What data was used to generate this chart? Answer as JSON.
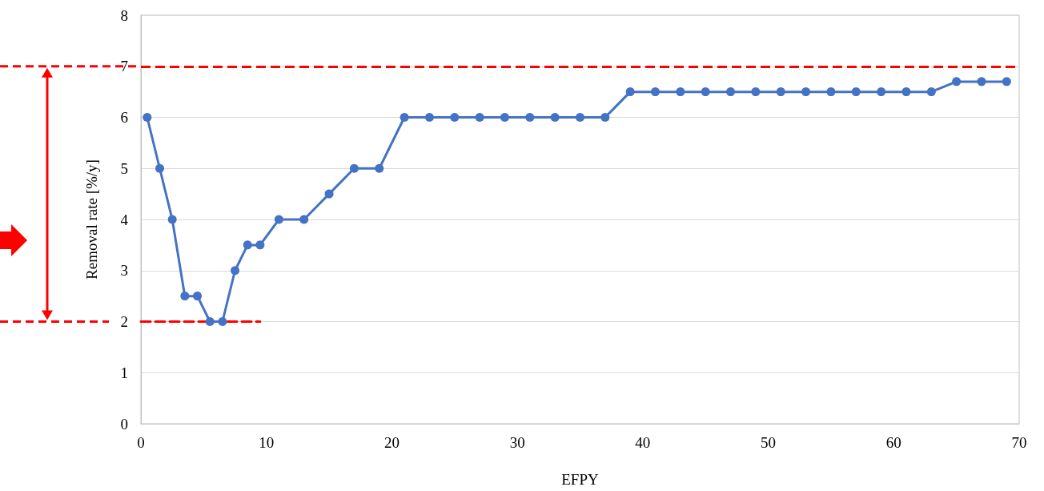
{
  "chart_data": {
    "type": "line",
    "xlabel": "EFPY",
    "ylabel": "Removal rate [%/y]",
    "xlim": [
      0,
      70
    ],
    "xticks": [
      0,
      10,
      20,
      30,
      40,
      50,
      60,
      70
    ],
    "ylim": [
      0,
      8
    ],
    "yticks": [
      0,
      1,
      2,
      3,
      4,
      5,
      6,
      7,
      8
    ],
    "grid": "y",
    "marker": "circle",
    "line_style": "solid",
    "series": [
      {
        "color": "#4472c4",
        "x": [
          0.5,
          1.5,
          2.5,
          3.5,
          4.5,
          5.5,
          6.5,
          7.5,
          8.5,
          9.5,
          11,
          13,
          15,
          17,
          19,
          21,
          23,
          25,
          27,
          29,
          31,
          33,
          35,
          37,
          39,
          41,
          43,
          45,
          47,
          49,
          51,
          53,
          55,
          57,
          59,
          61,
          63,
          65,
          67,
          69
        ],
        "values": [
          6,
          5,
          4,
          2.5,
          2.5,
          2,
          2,
          3,
          3.5,
          3.5,
          4,
          4,
          4.5,
          5,
          5,
          6,
          6,
          6,
          6,
          6,
          6,
          6,
          6,
          6,
          6.5,
          6.5,
          6.5,
          6.5,
          6.5,
          6.5,
          6.5,
          6.5,
          6.5,
          6.5,
          6.5,
          6.5,
          6.5,
          6.7,
          6.7,
          6.7
        ]
      },
      {
        "type": "line",
        "color": "#ff0000",
        "x": [
          0,
          9.5
        ],
        "values": [
          2,
          2
        ],
        "marker": "none",
        "line_style": "dashed"
      }
    ],
    "ref_lines": [
      {
        "axis": "y",
        "value": 7,
        "color": "#ff0000",
        "line_style": "dashed"
      }
    ]
  }
}
